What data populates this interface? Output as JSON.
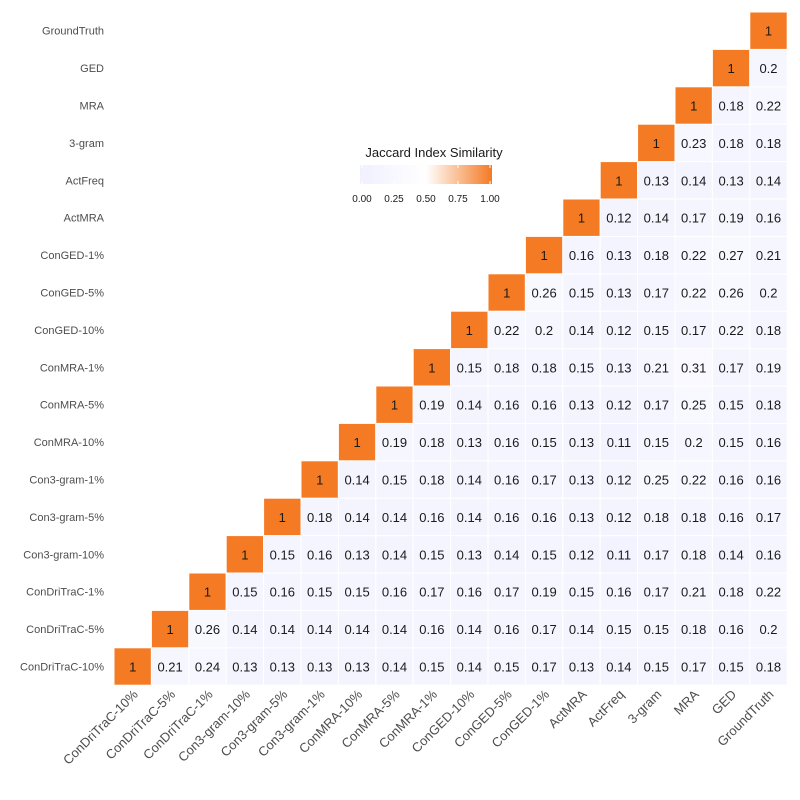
{
  "chart_data": {
    "type": "heatmap",
    "labels": [
      "ConDriTraC-10%",
      "ConDriTraC-5%",
      "ConDriTraC-1%",
      "Con3-gram-10%",
      "Con3-gram-5%",
      "Con3-gram-1%",
      "ConMRA-10%",
      "ConMRA-5%",
      "ConMRA-1%",
      "ConGED-10%",
      "ConGED-5%",
      "ConGED-1%",
      "ActMRA",
      "ActFreq",
      "3-gram",
      "MRA",
      "GED",
      "GroundTruth"
    ],
    "cell_text": [
      [
        "1",
        "0.21",
        "0.24",
        "0.13",
        "0.13",
        "0.13",
        "0.13",
        "0.14",
        "0.15",
        "0.14",
        "0.15",
        "0.17",
        "0.13",
        "0.14",
        "0.15",
        "0.17",
        "0.15",
        "0.18"
      ],
      [
        "",
        "1",
        "0.26",
        "0.14",
        "0.14",
        "0.14",
        "0.14",
        "0.14",
        "0.16",
        "0.14",
        "0.16",
        "0.17",
        "0.14",
        "0.15",
        "0.15",
        "0.18",
        "0.16",
        "0.2"
      ],
      [
        "",
        "",
        "1",
        "0.15",
        "0.16",
        "0.15",
        "0.15",
        "0.16",
        "0.17",
        "0.16",
        "0.17",
        "0.19",
        "0.15",
        "0.16",
        "0.17",
        "0.21",
        "0.18",
        "0.22"
      ],
      [
        "",
        "",
        "",
        "1",
        "0.15",
        "0.16",
        "0.13",
        "0.14",
        "0.15",
        "0.13",
        "0.14",
        "0.15",
        "0.12",
        "0.11",
        "0.17",
        "0.18",
        "0.14",
        "0.16"
      ],
      [
        "",
        "",
        "",
        "",
        "1",
        "0.18",
        "0.14",
        "0.14",
        "0.16",
        "0.14",
        "0.16",
        "0.16",
        "0.13",
        "0.12",
        "0.18",
        "0.18",
        "0.16",
        "0.17"
      ],
      [
        "",
        "",
        "",
        "",
        "",
        "1",
        "0.14",
        "0.15",
        "0.18",
        "0.14",
        "0.16",
        "0.17",
        "0.13",
        "0.12",
        "0.25",
        "0.22",
        "0.16",
        "0.16"
      ],
      [
        "",
        "",
        "",
        "",
        "",
        "",
        "1",
        "0.19",
        "0.18",
        "0.13",
        "0.16",
        "0.15",
        "0.13",
        "0.11",
        "0.15",
        "0.2",
        "0.15",
        "0.16"
      ],
      [
        "",
        "",
        "",
        "",
        "",
        "",
        "",
        "1",
        "0.19",
        "0.14",
        "0.16",
        "0.16",
        "0.13",
        "0.12",
        "0.17",
        "0.25",
        "0.15",
        "0.18"
      ],
      [
        "",
        "",
        "",
        "",
        "",
        "",
        "",
        "",
        "1",
        "0.15",
        "0.18",
        "0.18",
        "0.15",
        "0.13",
        "0.21",
        "0.31",
        "0.17",
        "0.19"
      ],
      [
        "",
        "",
        "",
        "",
        "",
        "",
        "",
        "",
        "",
        "1",
        "0.22",
        "0.2",
        "0.14",
        "0.12",
        "0.15",
        "0.17",
        "0.22",
        "0.18"
      ],
      [
        "",
        "",
        "",
        "",
        "",
        "",
        "",
        "",
        "",
        "",
        "1",
        "0.26",
        "0.15",
        "0.13",
        "0.17",
        "0.22",
        "0.26",
        "0.2"
      ],
      [
        "",
        "",
        "",
        "",
        "",
        "",
        "",
        "",
        "",
        "",
        "",
        "1",
        "0.16",
        "0.13",
        "0.18",
        "0.22",
        "0.27",
        "0.21"
      ],
      [
        "",
        "",
        "",
        "",
        "",
        "",
        "",
        "",
        "",
        "",
        "",
        "",
        "1",
        "0.12",
        "0.14",
        "0.17",
        "0.19",
        "0.16"
      ],
      [
        "",
        "",
        "",
        "",
        "",
        "",
        "",
        "",
        "",
        "",
        "",
        "",
        "",
        "1",
        "0.13",
        "0.14",
        "0.13",
        "0.14"
      ],
      [
        "",
        "",
        "",
        "",
        "",
        "",
        "",
        "",
        "",
        "",
        "",
        "",
        "",
        "",
        "1",
        "0.23",
        "0.18",
        "0.18"
      ],
      [
        "",
        "",
        "",
        "",
        "",
        "",
        "",
        "",
        "",
        "",
        "",
        "",
        "",
        "",
        "",
        "1",
        "0.18",
        "0.22"
      ],
      [
        "",
        "",
        "",
        "",
        "",
        "",
        "",
        "",
        "",
        "",
        "",
        "",
        "",
        "",
        "",
        "",
        "1",
        "0.2"
      ],
      [
        "",
        "",
        "",
        "",
        "",
        "",
        "",
        "",
        "",
        "",
        "",
        "",
        "",
        "",
        "",
        "",
        "",
        "1"
      ]
    ],
    "legend": {
      "title": "Jaccard Index Similarity",
      "ticks": [
        "0.00",
        "0.25",
        "0.50",
        "0.75",
        "1.00"
      ],
      "range": [
        0,
        1
      ],
      "placement": "upper-left interior, above diagonal"
    },
    "colors": {
      "low": "#f0f0ff",
      "mid": "#ffffff",
      "high": "#f47a24",
      "grid": "#ffffff"
    },
    "title": "",
    "xlabel": "",
    "ylabel": ""
  }
}
